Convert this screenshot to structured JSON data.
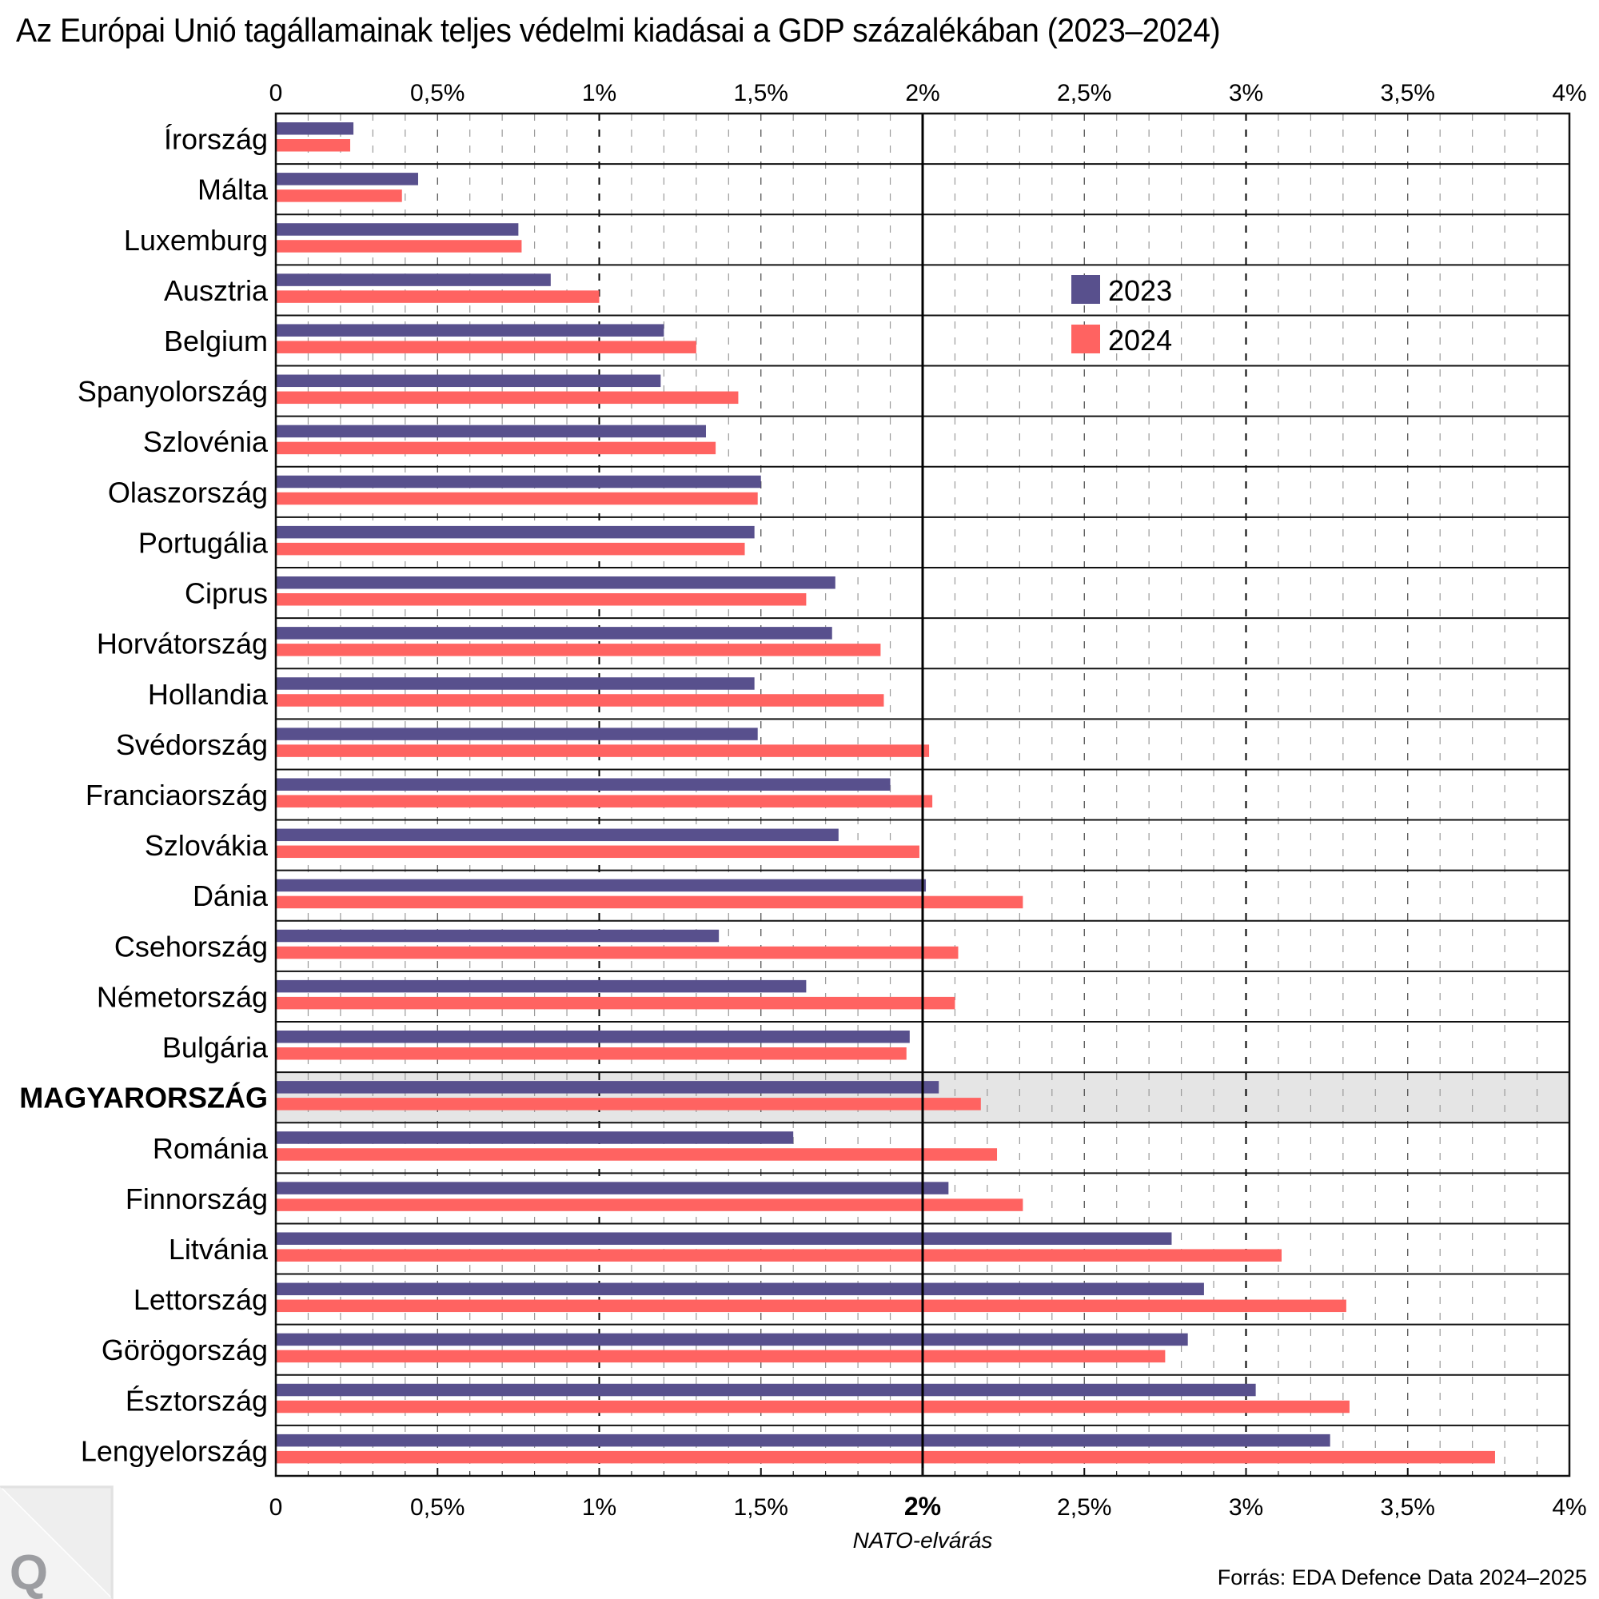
{
  "chart_data": {
    "type": "bar",
    "orientation": "horizontal",
    "title": "Az Európai Unió tagállamainak teljes védelmi kiadásai a GDP százalékában (2023–2024)",
    "xlabel": "",
    "ylabel": "",
    "xlim": [
      0,
      4
    ],
    "x_unit": "% of GDP",
    "x_ticks": [
      0,
      0.5,
      1,
      1.5,
      2,
      2.5,
      3,
      3.5,
      4
    ],
    "x_tick_labels": [
      "0",
      "0,5%",
      "1%",
      "1,5%",
      "2%",
      "2,5%",
      "3%",
      "3,5%",
      "4%"
    ],
    "minor_grid_step": 0.1,
    "grid": true,
    "reference_line": {
      "value": 2,
      "label": "2%",
      "annotation": "NATO-elvárás"
    },
    "highlight_category": "MAGYARORSZÁG",
    "legend_position": "upper-center-right",
    "categories": [
      "Írország",
      "Málta",
      "Luxemburg",
      "Ausztria",
      "Belgium",
      "Spanyolország",
      "Szlovénia",
      "Olaszország",
      "Portugália",
      "Ciprus",
      "Horvátország",
      "Hollandia",
      "Svédország",
      "Franciaország",
      "Szlovákia",
      "Dánia",
      "Csehország",
      "Németország",
      "Bulgária",
      "MAGYARORSZÁG",
      "Románia",
      "Finnország",
      "Litvánia",
      "Lettország",
      "Görögország",
      "Észtország",
      "Lengyelország"
    ],
    "series": [
      {
        "name": "2023",
        "color": "#58508d",
        "values": [
          0.24,
          0.44,
          0.75,
          0.85,
          1.2,
          1.19,
          1.33,
          1.5,
          1.48,
          1.73,
          1.72,
          1.48,
          1.49,
          1.9,
          1.74,
          2.01,
          1.37,
          1.64,
          1.96,
          2.05,
          1.6,
          2.08,
          2.77,
          2.87,
          2.82,
          3.03,
          3.26
        ]
      },
      {
        "name": "2024",
        "color": "#ff6361",
        "values": [
          0.23,
          0.39,
          0.76,
          1.0,
          1.3,
          1.43,
          1.36,
          1.49,
          1.45,
          1.64,
          1.87,
          1.88,
          2.02,
          2.03,
          1.99,
          2.31,
          2.11,
          2.1,
          1.95,
          2.18,
          2.23,
          2.31,
          3.11,
          3.31,
          2.75,
          3.32,
          3.77
        ]
      }
    ],
    "source": "Forrás: EDA Defence Data 2024–2025"
  },
  "colors": {
    "highlight_row_bg": "#e5e5e5",
    "grid_minor": "#9a9a9a",
    "grid_major": "#000000"
  },
  "logo": {
    "letter": "Q"
  }
}
